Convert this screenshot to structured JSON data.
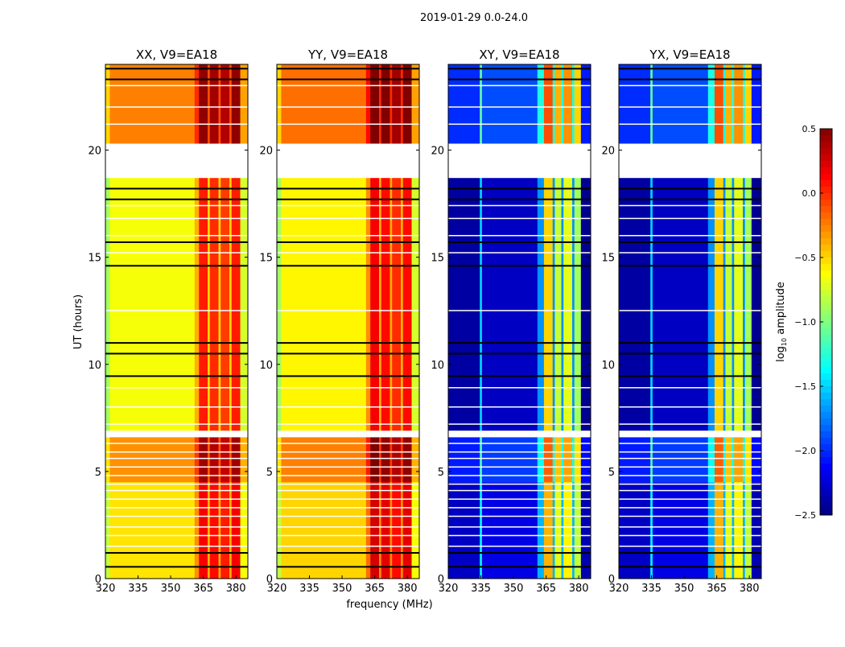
{
  "chart_data": {
    "type": "heatmap",
    "title": "2019-01-29 0.0-24.0",
    "xlabel": "frequency (MHz)",
    "ylabel": "UT (hours)",
    "xlim": [
      320,
      385.5
    ],
    "ylim": [
      0,
      24
    ],
    "xticks": [
      "320",
      "335",
      "350",
      "365",
      "380"
    ],
    "xtick_values": [
      320,
      335,
      350,
      365,
      380
    ],
    "yticks": [
      "0",
      "5",
      "10",
      "15",
      "20"
    ],
    "ytick_values": [
      0,
      5,
      10,
      15,
      20
    ],
    "colorbar": {
      "label": "log10 amplitude",
      "label_main": "log",
      "label_sub": "10",
      "label_rest": " amplitude",
      "range": [
        -2.5,
        0.5
      ],
      "ticks": [
        "0.5",
        "0.0",
        "−0.5",
        "−1.0",
        "−1.5",
        "−2.0",
        "−2.5"
      ],
      "tick_values": [
        0.5,
        0.0,
        -0.5,
        -1.0,
        -1.5,
        -2.0,
        -2.5
      ],
      "colormap": "jet"
    },
    "time_gaps": [
      [
        6.6,
        6.9
      ],
      [
        18.7,
        20.3
      ]
    ],
    "time_blocks": [
      [
        0,
        4.5,
        0.0
      ],
      [
        4.5,
        6.6,
        0.25
      ],
      [
        6.9,
        18.7,
        -0.1
      ],
      [
        20.3,
        24,
        0.3
      ]
    ],
    "white_rows": [
      1.5,
      2.0,
      2.4,
      2.9,
      3.3,
      3.7,
      4.1,
      4.4,
      4.8,
      5.2,
      5.6,
      5.9,
      6.3,
      7.2,
      8.0,
      8.9,
      12.5,
      15.2,
      16.0,
      16.8,
      17.4,
      21.2,
      22.0,
      23.0
    ],
    "flagged_rows": [
      0.55,
      1.2,
      9.45,
      10.5,
      11.0,
      14.6,
      15.7,
      17.7,
      18.2,
      23.3,
      23.8
    ],
    "panels": [
      {
        "title": "XX, V9=EA18",
        "segments": [
          [
            320,
            322,
            -0.8
          ],
          [
            322,
            361,
            -0.55
          ],
          [
            361,
            363,
            -0.3
          ],
          [
            363,
            367,
            0.15
          ],
          [
            367,
            368,
            -0.4
          ],
          [
            368,
            372,
            0.1
          ],
          [
            372,
            373,
            -0.4
          ],
          [
            373,
            377,
            0.05
          ],
          [
            377,
            378,
            -0.4
          ],
          [
            378,
            382,
            0.15
          ],
          [
            382,
            385.5,
            -0.65
          ]
        ]
      },
      {
        "title": "YY, V9=EA18",
        "segments": [
          [
            320,
            322,
            -0.8
          ],
          [
            322,
            361,
            -0.5
          ],
          [
            361,
            363,
            -0.2
          ],
          [
            363,
            367,
            0.25
          ],
          [
            367,
            368,
            -0.3
          ],
          [
            368,
            372,
            0.2
          ],
          [
            372,
            373,
            -0.3
          ],
          [
            373,
            377,
            0.1
          ],
          [
            377,
            378,
            -0.3
          ],
          [
            378,
            382,
            0.2
          ],
          [
            382,
            385.5,
            -0.65
          ]
        ]
      },
      {
        "title": "XY, V9=EA18",
        "segments": [
          [
            320,
            334.5,
            -2.3
          ],
          [
            334.5,
            335.5,
            -1.4
          ],
          [
            335.5,
            361,
            -2.2
          ],
          [
            361,
            364,
            -1.6
          ],
          [
            364,
            368,
            -0.4
          ],
          [
            368,
            369,
            -1.6
          ],
          [
            369,
            372,
            -0.7
          ],
          [
            372,
            373,
            -1.6
          ],
          [
            373,
            377,
            -0.6
          ],
          [
            377,
            378,
            -1.6
          ],
          [
            378,
            381,
            -0.8
          ],
          [
            381,
            385.5,
            -2.35
          ]
        ]
      },
      {
        "title": "YX, V9=EA18",
        "segments": [
          [
            320,
            334.5,
            -2.3
          ],
          [
            334.5,
            335.5,
            -1.4
          ],
          [
            335.5,
            361,
            -2.2
          ],
          [
            361,
            364,
            -1.6
          ],
          [
            364,
            368,
            -0.4
          ],
          [
            368,
            369,
            -1.6
          ],
          [
            369,
            372,
            -0.7
          ],
          [
            372,
            373,
            -1.6
          ],
          [
            373,
            377,
            -0.6
          ],
          [
            377,
            378,
            -1.6
          ],
          [
            378,
            381,
            -0.8
          ],
          [
            381,
            385.5,
            -2.35
          ]
        ]
      }
    ]
  }
}
